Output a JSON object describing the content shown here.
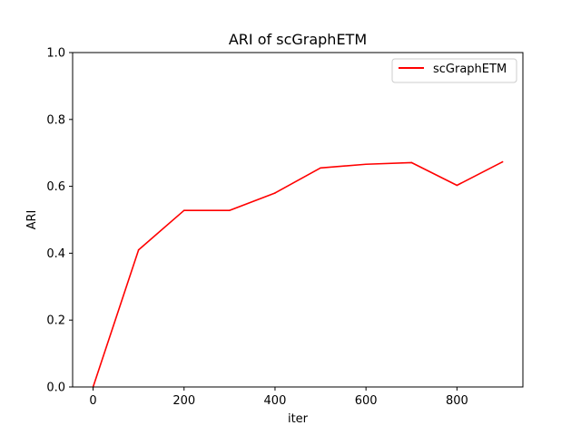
{
  "chart_data": {
    "type": "line",
    "title": "ARI of scGraphETM",
    "xlabel": "iter",
    "ylabel": "ARI",
    "xlim": [
      -45,
      945
    ],
    "ylim": [
      0.0,
      1.0
    ],
    "xticks": [
      0,
      200,
      400,
      600,
      800
    ],
    "xtick_labels": [
      "0",
      "200",
      "400",
      "600",
      "800"
    ],
    "yticks": [
      0.0,
      0.2,
      0.4,
      0.6,
      0.8,
      1.0
    ],
    "ytick_labels": [
      "0.0",
      "0.2",
      "0.4",
      "0.6",
      "0.8",
      "1.0"
    ],
    "grid": false,
    "legend_position": "top-right",
    "series": [
      {
        "name": "scGraphETM",
        "color": "#ff0000",
        "x": [
          0,
          100,
          200,
          300,
          400,
          500,
          600,
          700,
          800,
          900
        ],
        "y": [
          0.0,
          0.41,
          0.528,
          0.528,
          0.58,
          0.655,
          0.666,
          0.671,
          0.603,
          0.673
        ]
      }
    ]
  }
}
